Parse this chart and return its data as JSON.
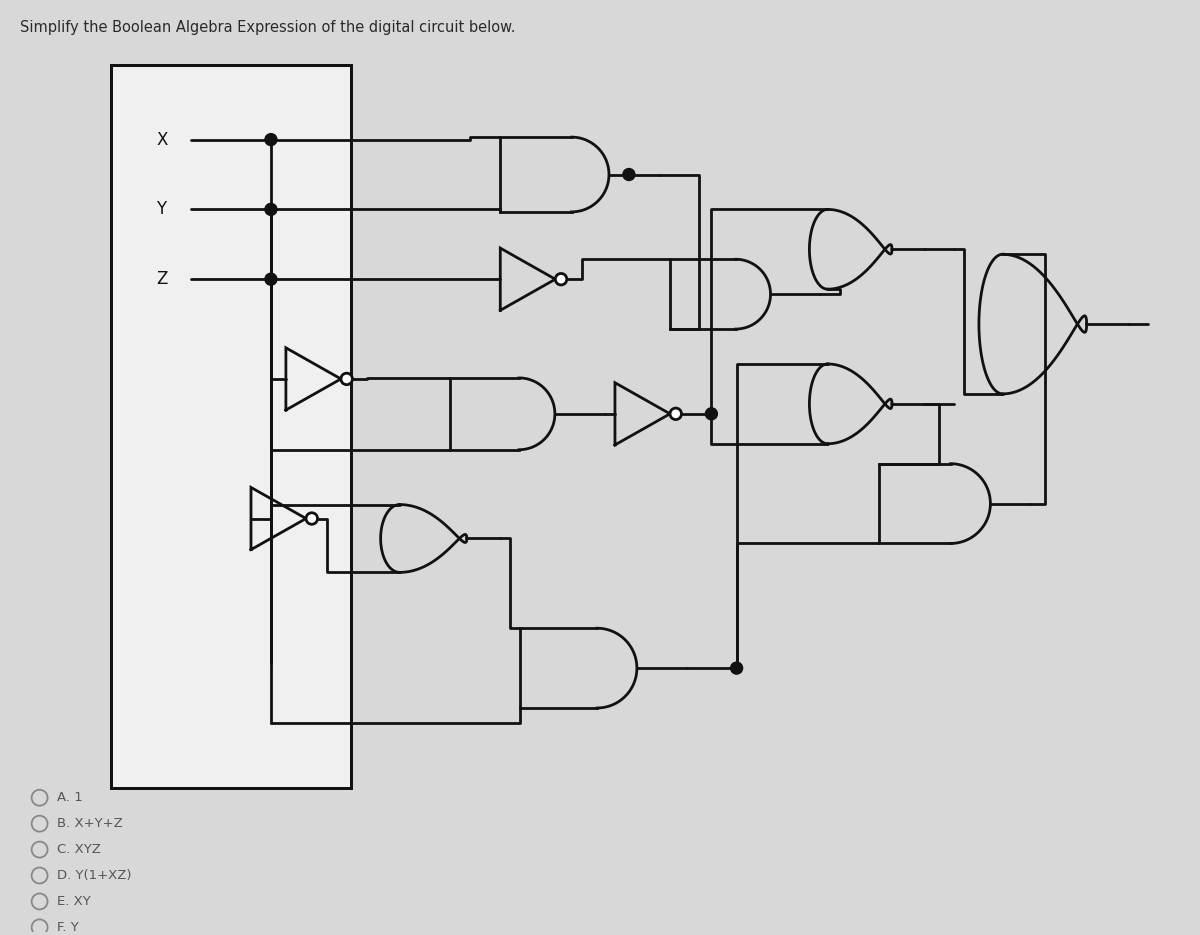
{
  "title": "Simplify the Boolean Algebra Expression of the digital circuit below.",
  "bg_color": "#d8d8d8",
  "line_color": "#111111",
  "options": [
    "A. 1",
    "B. X+Y+Z",
    "C. XYZ",
    "D. Y(1+XZ)",
    "E. XY",
    "F. Y"
  ]
}
